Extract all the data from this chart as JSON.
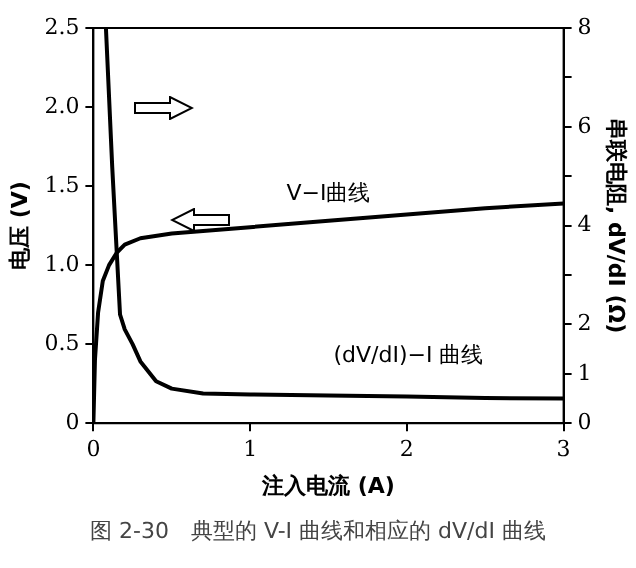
{
  "chart_data": {
    "type": "line",
    "xlabel": "注入电流 (A)",
    "ylabel": "电压 (V)",
    "y2label": "串联电阻, dV/dI (Ω)",
    "xlim": [
      0,
      3
    ],
    "xticks": [
      0,
      1,
      2,
      3
    ],
    "ylim": [
      0,
      2.5
    ],
    "yticks": [
      0,
      {
        "value": 0.5,
        "label": "0.5"
      },
      {
        "value": 1,
        "label": "1.0"
      },
      {
        "value": 1.5,
        "label": "1.5"
      },
      {
        "value": 2,
        "label": "2.0"
      },
      {
        "value": 2.5,
        "label": "2.5"
      }
    ],
    "y2lim": [
      0,
      8
    ],
    "y2ticks": [
      0,
      1,
      2,
      {
        "value": 3,
        "label": null
      },
      4,
      {
        "value": 5,
        "label": null
      },
      6,
      {
        "value": 7,
        "label": null
      },
      8
    ],
    "series": [
      {
        "color": "#000000",
        "x": [
          0,
          0.01,
          0.03,
          0.06,
          0.1,
          0.15,
          0.2,
          0.3,
          0.5,
          1,
          1.5,
          2,
          2.5,
          3
        ],
        "values": [
          0,
          0.4,
          0.7,
          0.9,
          1.0,
          1.08,
          1.13,
          1.17,
          1.2,
          1.24,
          1.28,
          1.32,
          1.36,
          1.39
        ]
      },
      {
        "color": "#000000",
        "axis": "y2",
        "x": [
          0.08,
          0.12,
          0.17,
          0.2,
          0.25,
          0.3,
          0.4,
          0.5,
          0.7,
          1,
          1.5,
          2,
          2.5,
          3
        ],
        "values": [
          8,
          5.2,
          2.2,
          1.9,
          1.6,
          1.25,
          0.85,
          0.7,
          0.6,
          0.58,
          0.56,
          0.54,
          0.51,
          0.5
        ]
      }
    ],
    "annotations": [
      "V−I曲线",
      "(dV/dI)−I 曲线",
      "图 2-30　典型的 V-I 曲线和相应的 dV/dI 曲线"
    ],
    "legend": false,
    "marker": "none",
    "line_style": "solid"
  }
}
